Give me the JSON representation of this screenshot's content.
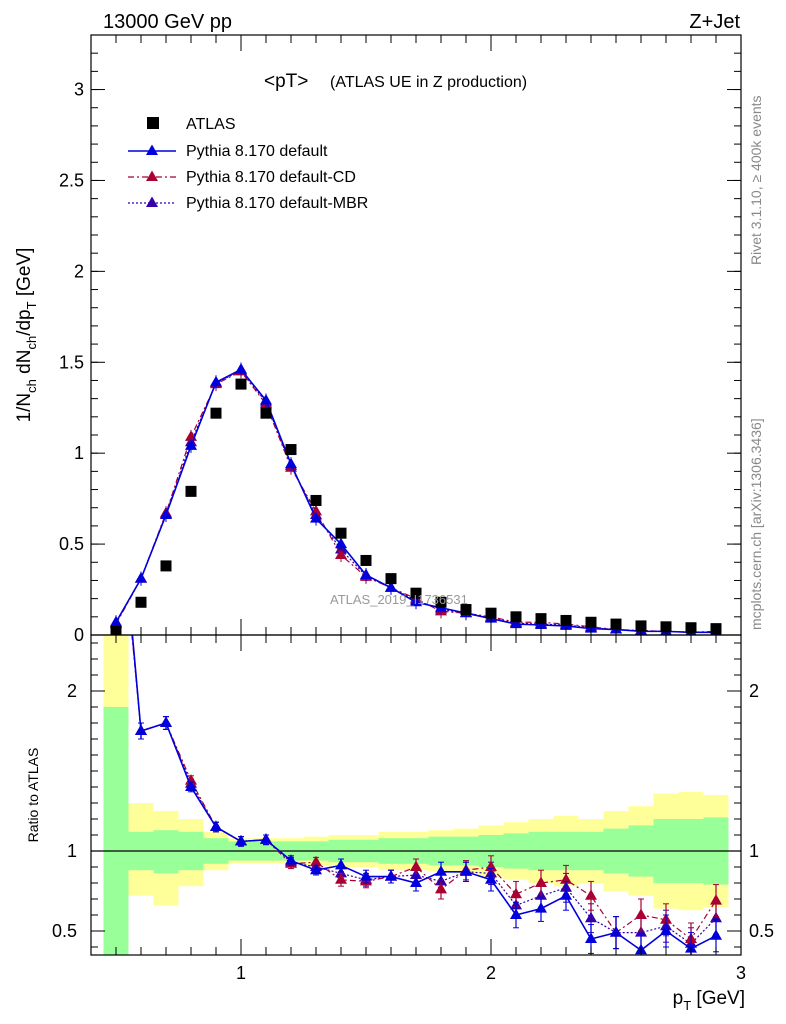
{
  "header": {
    "left": "13000 GeV pp",
    "right": "Z+Jet"
  },
  "title_main": "<pT>",
  "title_sub": "(ATLAS UE in Z production)",
  "side_text": {
    "rivet": "Rivet 3.1.10, ≥ 400k events",
    "mcplots": "mcplots.cern.ch [arXiv:1306.3436]"
  },
  "watermark": "ATLAS_2019_I1736531",
  "colors": {
    "data": "#000000",
    "default": "#0000dd",
    "cd": "#aa0033",
    "mbr": "#3300aa",
    "band_inner": "#99ff99",
    "band_outer": "#ffff99"
  },
  "chart_data": [
    {
      "type": "scatter",
      "panel": "main",
      "ylabel": "1/N_ch dN_ch/dp_T [GeV]",
      "ylim": [
        0,
        3.3
      ],
      "xlim": [
        0.4,
        3.0
      ],
      "yticks": [
        0,
        0.5,
        1,
        1.5,
        2,
        2.5,
        3
      ],
      "ytick_labels": [
        "0",
        "0.5",
        "1",
        "1.5",
        "2",
        "2.5",
        "3"
      ],
      "legend": [
        "ATLAS",
        "Pythia 8.170 default",
        "Pythia 8.170 default-CD",
        "Pythia 8.170 default-MBR"
      ],
      "legend_position": "top-left",
      "x": [
        0.5,
        0.6,
        0.7,
        0.8,
        0.9,
        1.0,
        1.1,
        1.2,
        1.3,
        1.4,
        1.5,
        1.6,
        1.7,
        1.8,
        1.9,
        2.0,
        2.1,
        2.2,
        2.3,
        2.4,
        2.5,
        2.6,
        2.7,
        2.8,
        2.9
      ],
      "series": [
        {
          "name": "ATLAS",
          "values": [
            0.02,
            0.18,
            0.38,
            0.79,
            1.22,
            1.38,
            1.22,
            1.02,
            0.74,
            0.56,
            0.41,
            0.31,
            0.23,
            0.18,
            0.14,
            0.12,
            0.1,
            0.09,
            0.08,
            0.07,
            0.06,
            0.05,
            0.045,
            0.04,
            0.035
          ]
        },
        {
          "name": "Pythia 8.170 default",
          "values": [
            0.07,
            0.31,
            0.66,
            1.04,
            1.39,
            1.46,
            1.29,
            0.94,
            0.64,
            0.5,
            0.33,
            0.26,
            0.18,
            0.15,
            0.12,
            0.09,
            0.06,
            0.055,
            0.05,
            0.035,
            0.03,
            0.02,
            0.02,
            0.015,
            0.015
          ]
        },
        {
          "name": "Pythia 8.170 default-CD",
          "values": [
            0.06,
            0.31,
            0.67,
            1.09,
            1.38,
            1.45,
            1.27,
            0.92,
            0.68,
            0.44,
            0.32,
            0.26,
            0.2,
            0.13,
            0.12,
            0.1,
            0.07,
            0.07,
            0.06,
            0.045,
            0.03,
            0.025,
            0.02,
            0.015,
            0.02
          ]
        },
        {
          "name": "Pythia 8.170 default-MBR",
          "values": [
            0.065,
            0.31,
            0.665,
            1.06,
            1.385,
            1.455,
            1.28,
            0.93,
            0.66,
            0.47,
            0.325,
            0.26,
            0.19,
            0.14,
            0.12,
            0.095,
            0.065,
            0.06,
            0.055,
            0.04,
            0.03,
            0.022,
            0.02,
            0.015,
            0.017
          ]
        }
      ]
    },
    {
      "type": "line",
      "panel": "ratio",
      "ylabel": "Ratio to ATLAS",
      "xlabel": "p_T [GeV]",
      "ylim": [
        0.35,
        2.35
      ],
      "xlim": [
        0.4,
        3.0
      ],
      "yticks": [
        0.5,
        1,
        2
      ],
      "ytick_labels": [
        "0.5",
        "1",
        "2"
      ],
      "xticks": [
        1,
        2,
        3
      ],
      "xtick_labels": [
        "1",
        "2",
        "3"
      ],
      "bin_edges": [
        0.45,
        0.55,
        0.65,
        0.75,
        0.85,
        0.95,
        1.05,
        1.15,
        1.25,
        1.35,
        1.45,
        1.55,
        1.65,
        1.75,
        1.85,
        1.95,
        2.05,
        2.15,
        2.25,
        2.35,
        2.45,
        2.55,
        2.65,
        2.75,
        2.85,
        2.95
      ],
      "band_inner_up": [
        1.9,
        1.12,
        1.13,
        1.12,
        1.08,
        1.06,
        1.06,
        1.06,
        1.06,
        1.07,
        1.07,
        1.08,
        1.08,
        1.09,
        1.09,
        1.1,
        1.11,
        1.12,
        1.12,
        1.12,
        1.14,
        1.16,
        1.2,
        1.2,
        1.21
      ],
      "band_inner_down": [
        0.35,
        0.88,
        0.86,
        0.88,
        0.92,
        0.94,
        0.94,
        0.94,
        0.94,
        0.93,
        0.93,
        0.92,
        0.92,
        0.91,
        0.91,
        0.9,
        0.89,
        0.88,
        0.88,
        0.88,
        0.86,
        0.84,
        0.8,
        0.8,
        0.79
      ],
      "band_outer_up": [
        2.35,
        1.3,
        1.25,
        1.2,
        1.12,
        1.08,
        1.08,
        1.08,
        1.09,
        1.1,
        1.1,
        1.12,
        1.12,
        1.13,
        1.14,
        1.16,
        1.18,
        1.2,
        1.22,
        1.2,
        1.25,
        1.28,
        1.36,
        1.37,
        1.35
      ],
      "band_outer_down": [
        0.35,
        0.72,
        0.66,
        0.78,
        0.88,
        0.92,
        0.92,
        0.92,
        0.91,
        0.9,
        0.9,
        0.88,
        0.88,
        0.87,
        0.86,
        0.84,
        0.82,
        0.8,
        0.78,
        0.8,
        0.75,
        0.72,
        0.64,
        0.63,
        0.65
      ],
      "x": [
        0.5,
        0.6,
        0.7,
        0.8,
        0.9,
        1.0,
        1.1,
        1.2,
        1.3,
        1.4,
        1.5,
        1.6,
        1.7,
        1.8,
        1.9,
        2.0,
        2.1,
        2.2,
        2.3,
        2.4,
        2.5,
        2.6,
        2.7,
        2.8,
        2.9
      ],
      "series": [
        {
          "name": "Pythia 8.170 default",
          "values": [
            3.5,
            1.75,
            1.8,
            1.4,
            1.15,
            1.06,
            1.07,
            0.94,
            0.88,
            0.91,
            0.84,
            0.84,
            0.8,
            0.87,
            0.87,
            0.82,
            0.6,
            0.64,
            0.72,
            0.45,
            0.49,
            0.38,
            0.5,
            0.39,
            0.47
          ],
          "errors": [
            0.3,
            0.05,
            0.04,
            0.03,
            0.03,
            0.03,
            0.03,
            0.03,
            0.03,
            0.04,
            0.04,
            0.04,
            0.05,
            0.06,
            0.06,
            0.07,
            0.08,
            0.08,
            0.09,
            0.09,
            0.1,
            0.1,
            0.1,
            0.1,
            0.1
          ]
        },
        {
          "name": "Pythia 8.170 default-CD",
          "values": [
            3.4,
            1.75,
            1.8,
            1.44,
            1.15,
            1.06,
            1.07,
            0.92,
            0.93,
            0.82,
            0.81,
            0.84,
            0.9,
            0.76,
            0.88,
            0.9,
            0.73,
            0.8,
            0.82,
            0.72,
            0.49,
            0.6,
            0.57,
            0.45,
            0.69
          ],
          "errors": [
            0.3,
            0.05,
            0.04,
            0.03,
            0.03,
            0.03,
            0.03,
            0.03,
            0.03,
            0.04,
            0.04,
            0.04,
            0.05,
            0.06,
            0.06,
            0.07,
            0.08,
            0.08,
            0.09,
            0.09,
            0.1,
            0.1,
            0.1,
            0.1,
            0.1
          ]
        },
        {
          "name": "Pythia 8.170 default-MBR",
          "values": [
            3.45,
            1.75,
            1.8,
            1.42,
            1.15,
            1.06,
            1.07,
            0.93,
            0.9,
            0.86,
            0.82,
            0.84,
            0.85,
            0.81,
            0.87,
            0.86,
            0.66,
            0.72,
            0.77,
            0.58,
            0.49,
            0.49,
            0.53,
            0.42,
            0.58
          ],
          "errors": [
            0.3,
            0.05,
            0.04,
            0.03,
            0.03,
            0.03,
            0.03,
            0.03,
            0.03,
            0.04,
            0.04,
            0.04,
            0.05,
            0.06,
            0.06,
            0.07,
            0.08,
            0.08,
            0.09,
            0.09,
            0.1,
            0.1,
            0.1,
            0.1,
            0.1
          ]
        }
      ]
    }
  ]
}
